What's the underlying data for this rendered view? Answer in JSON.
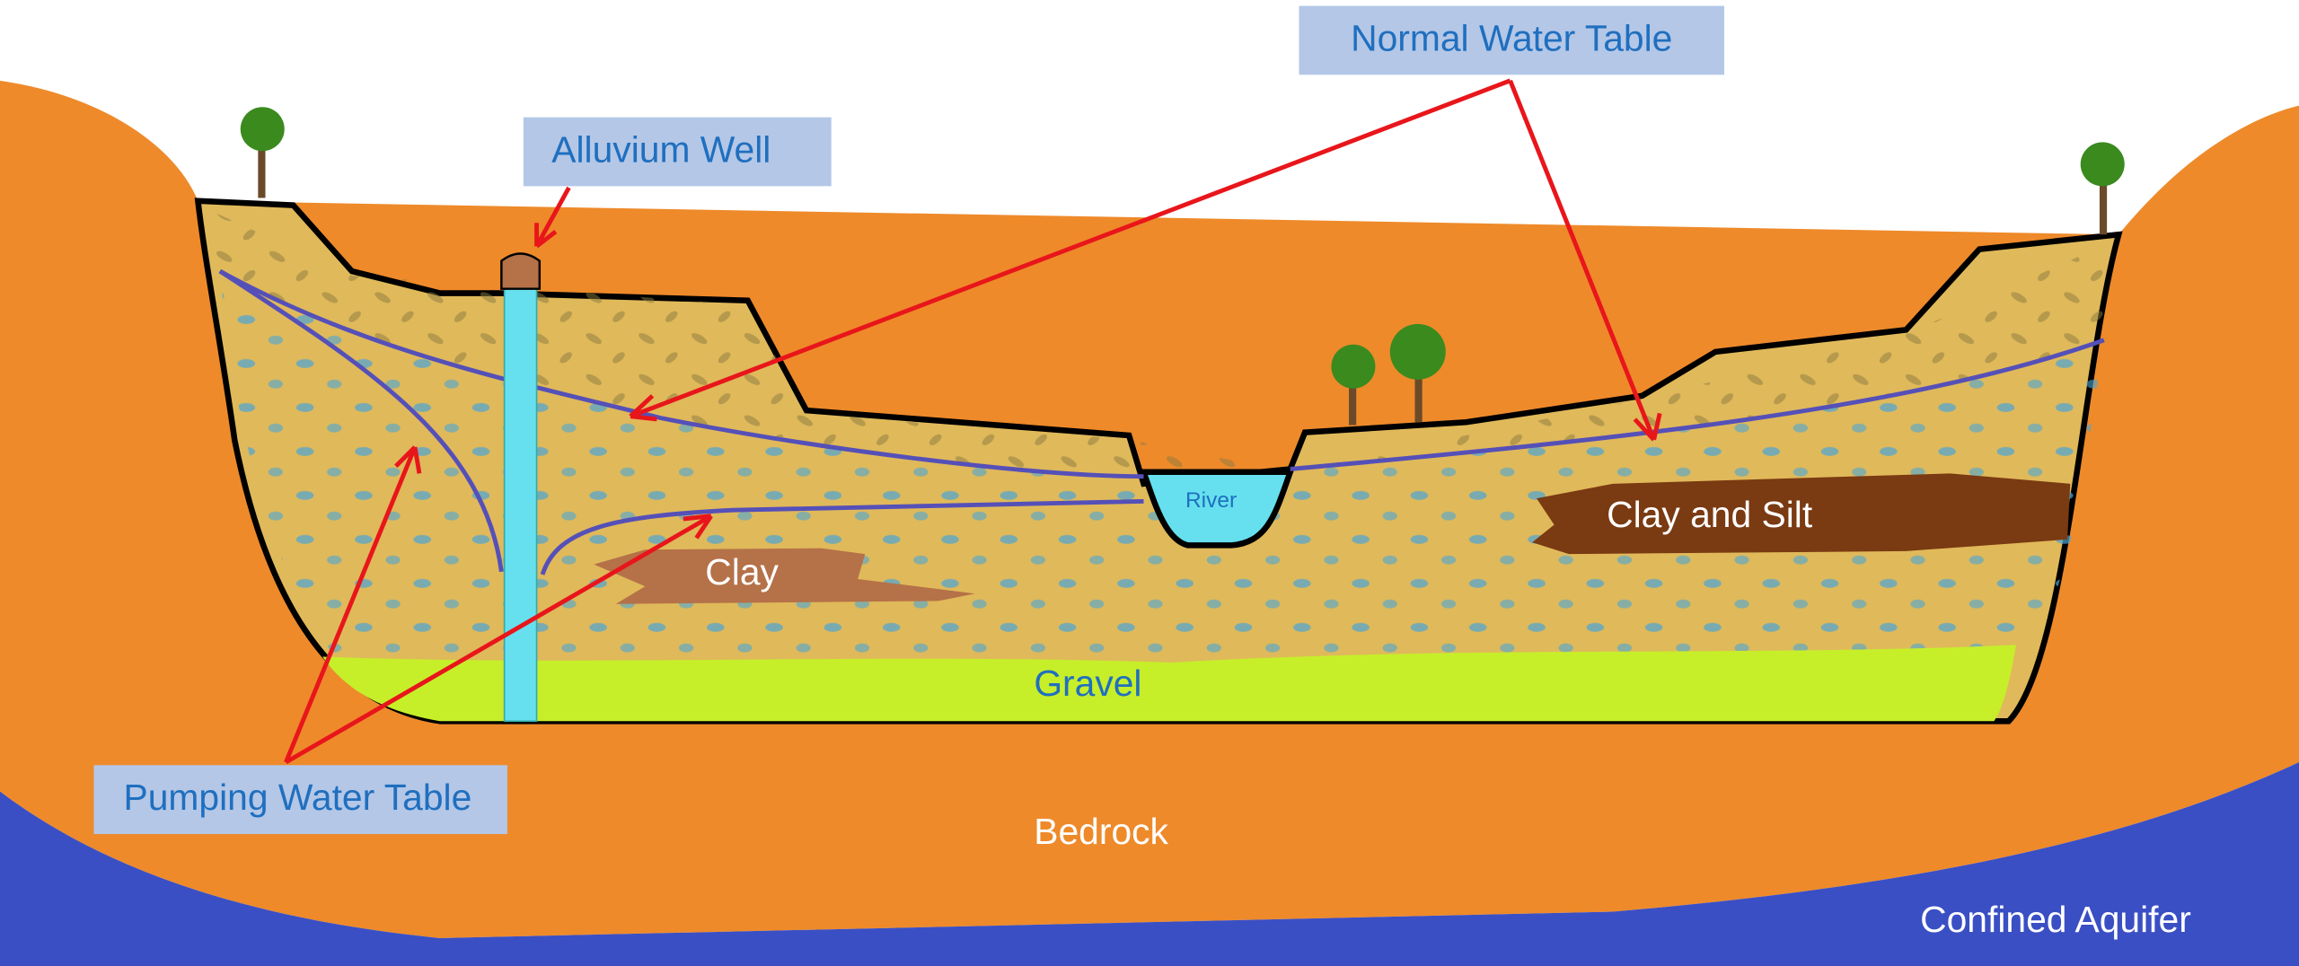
{
  "callouts": {
    "normal_water_table": "Normal Water Table",
    "alluvium_well": "Alluvium Well",
    "pumping_water_table": "Pumping Water Table"
  },
  "labels": {
    "river": "River",
    "clay": "Clay",
    "clay_and_silt": "Clay and Silt",
    "gravel": "Gravel",
    "bedrock": "Bedrock",
    "confined_aquifer": "Confined Aquifer"
  }
}
